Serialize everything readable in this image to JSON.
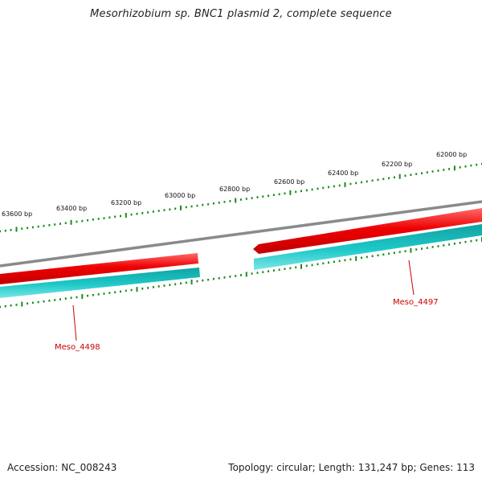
{
  "title": "Mesorhizobium sp. BNC1 plasmid 2, complete sequence",
  "footer": {
    "accession_text": "Accession: NC_008243",
    "summary_text": "Topology: circular; Length: 131,247 bp; Genes: 113"
  },
  "colors": {
    "backbone": "#8a8a8a",
    "forward_gene": "#ee0000",
    "reverse_gene": "#1abdbd",
    "ticks": "#1a8a1a",
    "gene_label": "#cc0000"
  },
  "ruler_labels": [
    "62000 bp",
    "62200 bp",
    "62400 bp",
    "62600 bp",
    "62800 bp",
    "63000 bp",
    "63200 bp",
    "63400 bp",
    "63600 bp"
  ],
  "genes": [
    {
      "label": "Meso_4498"
    },
    {
      "label": "Meso_4497"
    }
  ]
}
